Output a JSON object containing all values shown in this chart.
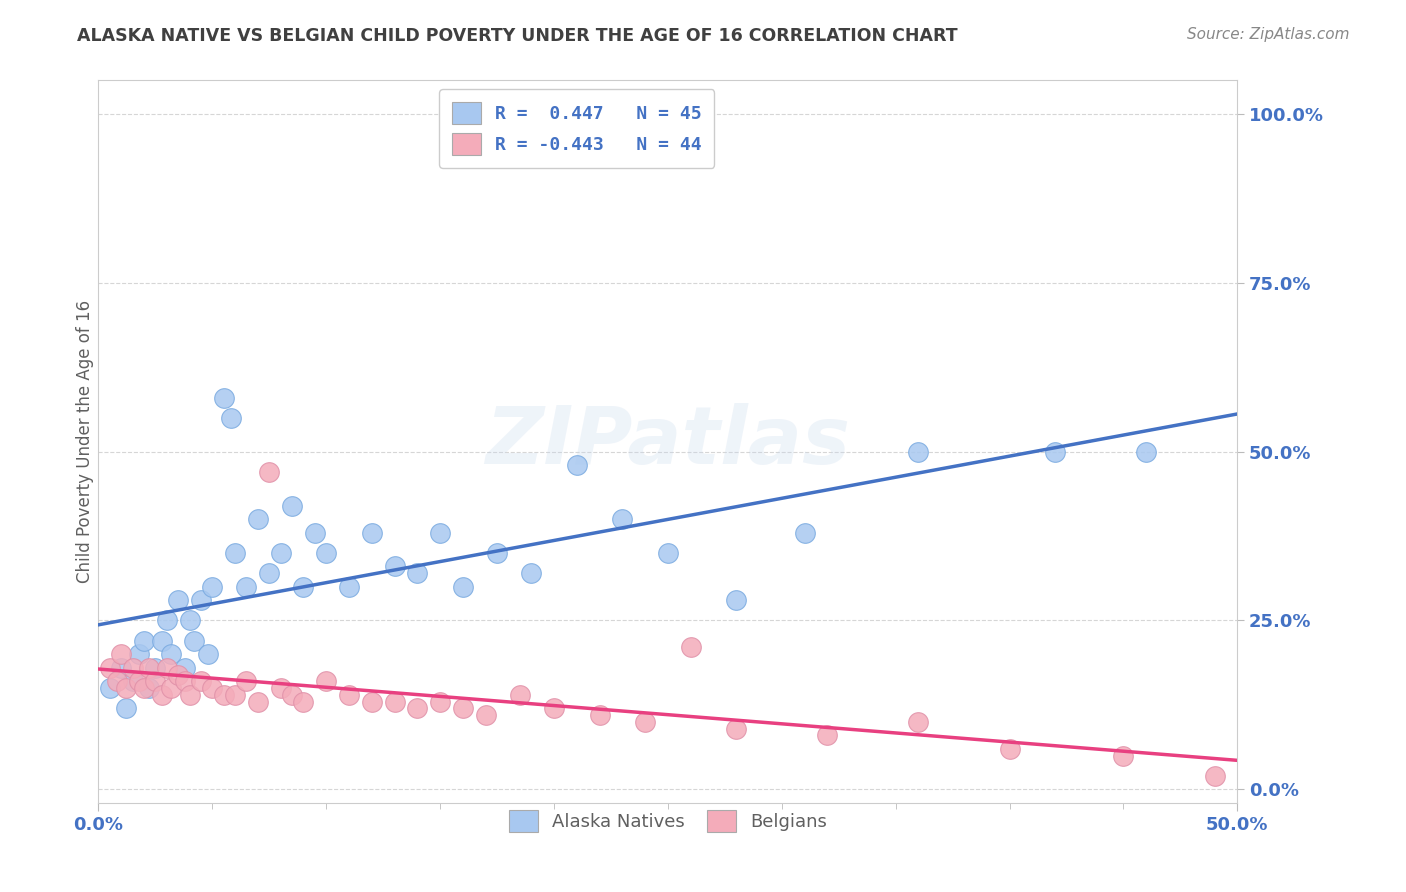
{
  "title": "ALASKA NATIVE VS BELGIAN CHILD POVERTY UNDER THE AGE OF 16 CORRELATION CHART",
  "source": "Source: ZipAtlas.com",
  "ylabel": "Child Poverty Under the Age of 16",
  "ytick_labels": [
    "0.0%",
    "25.0%",
    "50.0%",
    "75.0%",
    "100.0%"
  ],
  "ytick_values": [
    0.0,
    0.25,
    0.5,
    0.75,
    1.0
  ],
  "xtick_labels": [
    "0.0%",
    "50.0%"
  ],
  "xtick_values": [
    0.0,
    0.5
  ],
  "xlim": [
    0.0,
    0.5
  ],
  "ylim": [
    -0.02,
    1.05
  ],
  "legend_r1": "R =  0.447   N = 45",
  "legend_r2": "R = -0.443   N = 44",
  "blue_scatter_color": "#A8C8F0",
  "pink_scatter_color": "#F4ACBA",
  "blue_line_color": "#4472C4",
  "pink_line_color": "#E84080",
  "gray_dash_color": "#AAAAAA",
  "title_color": "#404040",
  "axis_label_color": "#4472C4",
  "legend_text_color": "#4472C4",
  "background_color": "#FFFFFF",
  "watermark": "ZIPatlas",
  "alaska_x": [
    0.005,
    0.01,
    0.012,
    0.015,
    0.018,
    0.02,
    0.022,
    0.025,
    0.028,
    0.03,
    0.032,
    0.035,
    0.038,
    0.04,
    0.042,
    0.045,
    0.048,
    0.05,
    0.055,
    0.058,
    0.06,
    0.065,
    0.07,
    0.075,
    0.08,
    0.085,
    0.09,
    0.095,
    0.1,
    0.11,
    0.12,
    0.13,
    0.14,
    0.15,
    0.16,
    0.175,
    0.19,
    0.21,
    0.23,
    0.25,
    0.28,
    0.31,
    0.36,
    0.42,
    0.46
  ],
  "alaska_y": [
    0.15,
    0.18,
    0.12,
    0.16,
    0.2,
    0.22,
    0.15,
    0.18,
    0.22,
    0.25,
    0.2,
    0.28,
    0.18,
    0.25,
    0.22,
    0.28,
    0.2,
    0.3,
    0.58,
    0.55,
    0.35,
    0.3,
    0.4,
    0.32,
    0.35,
    0.42,
    0.3,
    0.38,
    0.35,
    0.3,
    0.38,
    0.33,
    0.32,
    0.38,
    0.3,
    0.35,
    0.32,
    0.48,
    0.4,
    0.35,
    0.28,
    0.38,
    0.5,
    0.5,
    0.5
  ],
  "belgian_x": [
    0.005,
    0.008,
    0.01,
    0.012,
    0.015,
    0.018,
    0.02,
    0.022,
    0.025,
    0.028,
    0.03,
    0.032,
    0.035,
    0.038,
    0.04,
    0.045,
    0.05,
    0.055,
    0.06,
    0.065,
    0.07,
    0.075,
    0.08,
    0.085,
    0.09,
    0.1,
    0.11,
    0.12,
    0.13,
    0.14,
    0.15,
    0.16,
    0.17,
    0.185,
    0.2,
    0.22,
    0.24,
    0.26,
    0.28,
    0.32,
    0.36,
    0.4,
    0.45,
    0.49
  ],
  "belgian_y": [
    0.18,
    0.16,
    0.2,
    0.15,
    0.18,
    0.16,
    0.15,
    0.18,
    0.16,
    0.14,
    0.18,
    0.15,
    0.17,
    0.16,
    0.14,
    0.16,
    0.15,
    0.14,
    0.14,
    0.16,
    0.13,
    0.47,
    0.15,
    0.14,
    0.13,
    0.16,
    0.14,
    0.13,
    0.13,
    0.12,
    0.13,
    0.12,
    0.11,
    0.14,
    0.12,
    0.11,
    0.1,
    0.21,
    0.09,
    0.08,
    0.1,
    0.06,
    0.05,
    0.02
  ]
}
